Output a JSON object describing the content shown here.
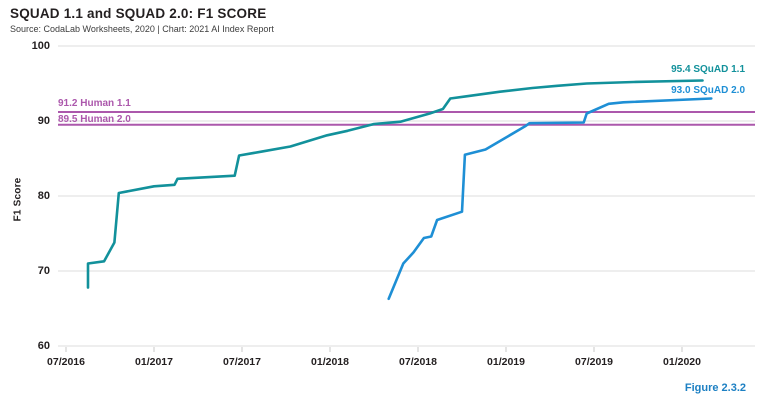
{
  "header": {
    "title": "SQUAD 1.1 and SQUAD 2.0: F1 SCORE",
    "source": "Source: CodaLab Worksheets, 2020 | Chart: 2021 AI Index Report"
  },
  "figure_label": "Figure 2.3.2",
  "colors": {
    "squad11": "#12919B",
    "squad20": "#1E8FD5",
    "human": "#AC58AC",
    "grid": "#E3E3E3",
    "tick": "#C9C9C9",
    "text": "#231F20",
    "figure_label": "#1D80C3"
  },
  "chart_data": {
    "type": "line",
    "title": "SQUAD 1.1 and SQUAD 2.0: F1 SCORE",
    "xlabel": "",
    "ylabel": "F1 Score",
    "ylim": [
      60,
      100
    ],
    "yticks": [
      60,
      70,
      80,
      90,
      100
    ],
    "xticks": [
      "07/2016",
      "01/2017",
      "07/2017",
      "01/2018",
      "07/2018",
      "01/2019",
      "07/2019",
      "01/2020"
    ],
    "x_unit": "months since 07/2016, 6 months between labeled ticks",
    "grid": "horizontal",
    "legend_position": "inline-end-labels",
    "series": [
      {
        "name": "SQuAD 1.1",
        "label": "95.4 SQuAD 1.1",
        "final_value": 95.4,
        "color_key": "squad11",
        "points": [
          [
            1.5,
            67.8
          ],
          [
            1.5,
            71.0
          ],
          [
            2.6,
            71.3
          ],
          [
            3.3,
            73.8
          ],
          [
            3.6,
            80.4
          ],
          [
            6.0,
            81.3
          ],
          [
            7.4,
            81.5
          ],
          [
            7.6,
            82.3
          ],
          [
            11.5,
            82.7
          ],
          [
            11.8,
            85.4
          ],
          [
            13.3,
            85.9
          ],
          [
            15.3,
            86.6
          ],
          [
            17.8,
            88.1
          ],
          [
            19.2,
            88.7
          ],
          [
            21.0,
            89.6
          ],
          [
            22.8,
            89.9
          ],
          [
            24.8,
            91.0
          ],
          [
            25.7,
            91.6
          ],
          [
            26.2,
            93.0
          ],
          [
            27.3,
            93.3
          ],
          [
            29.6,
            93.9
          ],
          [
            31.8,
            94.4
          ],
          [
            33.5,
            94.7
          ],
          [
            35.5,
            95.0
          ],
          [
            38.7,
            95.2
          ],
          [
            43.4,
            95.4
          ]
        ]
      },
      {
        "name": "SQuAD 2.0",
        "label": "93.0 SQuAD 2.0",
        "final_value": 93.0,
        "color_key": "squad20",
        "points": [
          [
            22.0,
            66.3
          ],
          [
            23.0,
            71.0
          ],
          [
            23.7,
            72.5
          ],
          [
            24.4,
            74.4
          ],
          [
            24.9,
            74.6
          ],
          [
            25.3,
            76.8
          ],
          [
            27.0,
            77.9
          ],
          [
            27.2,
            85.5
          ],
          [
            28.6,
            86.2
          ],
          [
            31.3,
            89.3
          ],
          [
            31.6,
            89.7
          ],
          [
            35.3,
            89.8
          ],
          [
            35.5,
            91.0
          ],
          [
            37.0,
            92.3
          ],
          [
            38.0,
            92.5
          ],
          [
            44.0,
            93.0
          ]
        ]
      }
    ],
    "reference_lines": [
      {
        "label": "91.2 Human 1.1",
        "value": 91.2
      },
      {
        "label": "89.5 Human 2.0",
        "value": 89.5
      }
    ]
  }
}
